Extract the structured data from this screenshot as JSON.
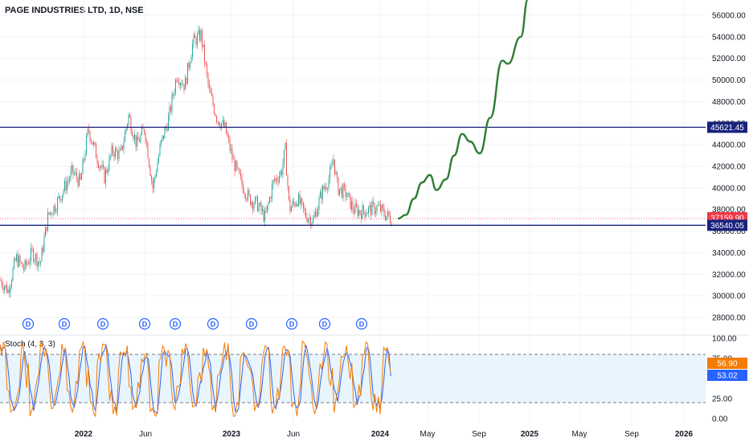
{
  "header": {
    "symbol_title": "PAGE INDUSTRIES LTD, 1D, NSE"
  },
  "indicator": {
    "name": "Stoch (4, 3, 3)",
    "k_value": "56.90",
    "d_value": "53.02",
    "k_color": "#f57c00",
    "d_color": "#2962ff",
    "upper_band": 80,
    "lower_band": 20,
    "ticks": [
      "100.00",
      "75.00",
      "25.00",
      "0.00"
    ]
  },
  "chart_data": {
    "type": "candlestick",
    "price_axis": {
      "ticks": [
        28000,
        30000,
        32000,
        34000,
        36000,
        38000,
        40000,
        42000,
        44000,
        46000,
        48000,
        50000,
        52000,
        54000,
        56000
      ],
      "tick_labels": [
        "28000.00",
        "30000.00",
        "32000.00",
        "34000.00",
        "36000.00",
        "38000.00",
        "40000.00",
        "42000.00",
        "44000.00",
        "46000.00",
        "48000.00",
        "50000.00",
        "52000.00",
        "54000.00",
        "56000.00"
      ],
      "range": [
        26500,
        57500
      ]
    },
    "time_axis": {
      "labels": [
        "2022",
        "Jun",
        "2023",
        "Jun",
        "2024",
        "May",
        "Sep",
        "2025",
        "May",
        "Sep",
        "2026"
      ],
      "bold": [
        "2022",
        "2023",
        "2024",
        "2025",
        "2026"
      ]
    },
    "horizontal_levels": [
      {
        "value": 45621.45,
        "label": "45621.45",
        "color": "#1a237e"
      },
      {
        "value": 36540.05,
        "label": "36540.05",
        "color": "#1a237e"
      }
    ],
    "last_price": {
      "value": 37159.9,
      "label": "37159.90",
      "color": "#f23645"
    },
    "candle_colors": {
      "up": "#26a69a",
      "down": "#ef5350"
    },
    "price_path_approx": [
      [
        0,
        31500
      ],
      [
        10,
        30500
      ],
      [
        20,
        33500
      ],
      [
        30,
        32500
      ],
      [
        40,
        34000
      ],
      [
        50,
        33000
      ],
      [
        60,
        37500
      ],
      [
        70,
        38500
      ],
      [
        80,
        40000
      ],
      [
        90,
        41500
      ],
      [
        100,
        40500
      ],
      [
        110,
        45500
      ],
      [
        120,
        43000
      ],
      [
        130,
        41000
      ],
      [
        140,
        43500
      ],
      [
        150,
        43000
      ],
      [
        160,
        46700
      ],
      [
        170,
        44000
      ],
      [
        180,
        45500
      ],
      [
        190,
        40000
      ],
      [
        200,
        44000
      ],
      [
        210,
        46500
      ],
      [
        220,
        50500
      ],
      [
        230,
        49500
      ],
      [
        240,
        53500
      ],
      [
        250,
        54200
      ],
      [
        260,
        49000
      ],
      [
        270,
        46500
      ],
      [
        280,
        45500
      ],
      [
        290,
        42500
      ],
      [
        300,
        40500
      ],
      [
        310,
        39000
      ],
      [
        320,
        38500
      ],
      [
        330,
        37200
      ],
      [
        340,
        40500
      ],
      [
        350,
        41500
      ],
      [
        355,
        43500
      ],
      [
        360,
        38000
      ],
      [
        370,
        39000
      ],
      [
        380,
        37500
      ],
      [
        390,
        37000
      ],
      [
        400,
        39500
      ],
      [
        410,
        41000
      ],
      [
        415,
        42700
      ],
      [
        420,
        40000
      ],
      [
        430,
        39500
      ],
      [
        440,
        38000
      ],
      [
        450,
        37800
      ],
      [
        460,
        38000
      ],
      [
        470,
        38200
      ],
      [
        480,
        37500
      ],
      [
        487,
        37160
      ]
    ],
    "projection": {
      "color": "#2e7d32",
      "points": [
        [
          495,
          37160
        ],
        [
          505,
          37500
        ],
        [
          515,
          39000
        ],
        [
          525,
          40500
        ],
        [
          535,
          41200
        ],
        [
          543,
          39800
        ],
        [
          555,
          40800
        ],
        [
          565,
          43000
        ],
        [
          575,
          45000
        ],
        [
          585,
          44300
        ],
        [
          597,
          43200
        ],
        [
          610,
          46500
        ],
        [
          625,
          51800
        ],
        [
          632,
          51500
        ],
        [
          648,
          54000
        ],
        [
          657,
          57500
        ]
      ]
    },
    "dividend_markers": {
      "label": "D",
      "x_positions": [
        35,
        80,
        128,
        180,
        218,
        265,
        313,
        363,
        404,
        450
      ]
    }
  }
}
